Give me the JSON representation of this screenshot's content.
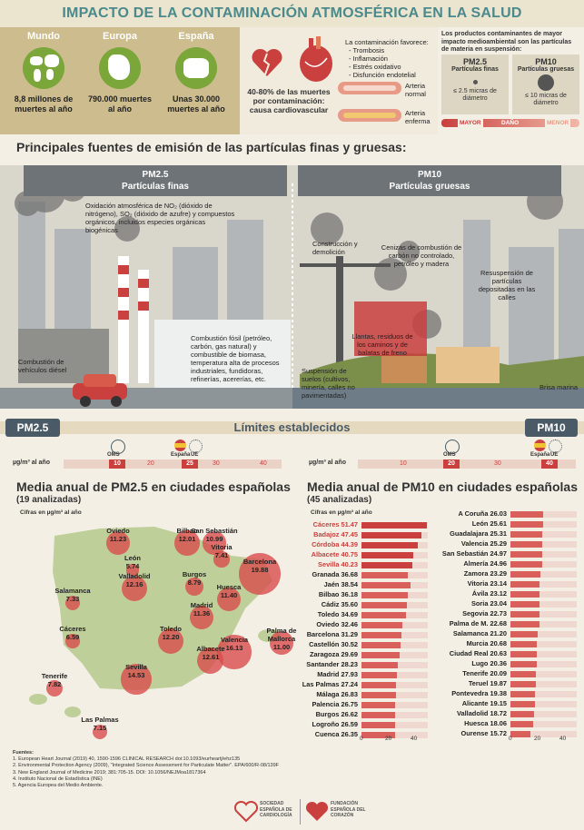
{
  "title": "IMPACTO DE LA CONTAMINACIÓN ATMOSFÉRICA EN LA SALUD",
  "regions": [
    {
      "name": "Mundo",
      "value": "8,8 millones de muertes al año"
    },
    {
      "name": "Europa",
      "value": "790.000 muertes al año"
    },
    {
      "name": "España",
      "value": "Unas 30.000 muertes al año"
    }
  ],
  "health": {
    "percent": "40-80% de las muertes por contaminación: causa cardiovascular",
    "favorece_title": "La contaminación favorece:",
    "favorece": [
      "- Trombosis",
      "- Inflamación",
      "- Estrés oxidativo",
      "- Disfunción endotelial"
    ],
    "arteria_normal": "Arteria normal",
    "arteria_enferma": "Arteria enferma"
  },
  "pm_compare": {
    "title": "Los productos contaminantes de mayor impacto medioambiental son las partículas de materia en suspensión:",
    "pm25_label": "PM2.5",
    "pm25_sub": "Partículas finas",
    "pm25_size": "≤ 2.5 micras de diámetro",
    "pm10_label": "PM10",
    "pm10_sub": "Partículas gruesas",
    "pm10_size": "≤ 10 micras de diámetro",
    "mayor": "MAYOR",
    "dano": "DAÑO",
    "menor": "MENOR"
  },
  "sources_title": "Principales fuentes de emisión de las partículas finas y gruesas:",
  "pm25_header": {
    "code": "PM2.5",
    "label": "Partículas finas"
  },
  "pm10_header": {
    "code": "PM10",
    "label": "Partículas gruesas"
  },
  "fine_sources": {
    "oxidacion": "Oxidación atmosférica de NO₂ (dióxido de nitrógeno), SO₂ (dióxido de azufre) y compuestos orgánicos, incluidos especies orgánicas biogénicas",
    "vehiculos": "Combustión de vehículos diésel",
    "fosil": "Combustión fósil (petróleo, carbón, gas natural) y combustible de biomasa, temperatura alta de procesos industriales, fundidoras, refinerías, acererías, etc."
  },
  "coarse_sources": {
    "construccion": "Construcción y demolición",
    "cenizas": "Cenizas de combustión de carbón no controlado, petróleo y madera",
    "resuspension": "Resuspensión de partículas depositadas en las calles",
    "llantas": "Llantas, residuos de los caminos y de balatas de freno",
    "suelos": "Suspensión de suelos (cultivos, minería, calles no pavimentadas)",
    "brisa": "Brisa marina"
  },
  "limits": {
    "title": "Límites establecidos",
    "pm25": "PM2.5",
    "pm10": "PM10",
    "unit": "µg/m³ al año",
    "oms": "OMS",
    "espana": "España",
    "ue": "UE",
    "pm25_ticks": [
      "10",
      "20",
      "25",
      "30",
      "40"
    ],
    "pm10_ticks": [
      "10",
      "20",
      "30",
      "40"
    ],
    "pm10_ticks_hi": [
      "20",
      "40"
    ]
  },
  "pm25_map": {
    "title": "Media anual de PM2.5 en ciudades españolas",
    "subtitle": "(19 analizadas)",
    "unit": "Cifras en µg/m³ al año",
    "cities": [
      {
        "name": "Oviedo",
        "value": "11.23"
      },
      {
        "name": "Bilbao",
        "value": "12.01"
      },
      {
        "name": "San Sebastián",
        "value": "10.99"
      },
      {
        "name": "Vitoria",
        "value": "7.41"
      },
      {
        "name": "León",
        "value": "5.74"
      },
      {
        "name": "Valladolid",
        "value": "12.16"
      },
      {
        "name": "Burgos",
        "value": "8.79"
      },
      {
        "name": "Barcelona",
        "value": "19.88"
      },
      {
        "name": "Salamanca",
        "value": "7.33"
      },
      {
        "name": "Huesca",
        "value": "11.40"
      },
      {
        "name": "Madrid",
        "value": "11.36"
      },
      {
        "name": "Cáceres",
        "value": "6.59"
      },
      {
        "name": "Toledo",
        "value": "12.20"
      },
      {
        "name": "Palma de Mallorca",
        "value": "11.00"
      },
      {
        "name": "Valencia",
        "value": "16.13"
      },
      {
        "name": "Albacete",
        "value": "12.61"
      },
      {
        "name": "Sevilla",
        "value": "14.53"
      },
      {
        "name": "Tenerife",
        "value": "7.82"
      },
      {
        "name": "Las Palmas",
        "value": "7.15"
      }
    ]
  },
  "pm10_chart": {
    "title": "Media anual de PM10 en ciudades españolas",
    "subtitle": "(45 analizadas)",
    "unit": "Cifras en µg/m³ al año",
    "axis": [
      "0",
      "20",
      "40"
    ],
    "left": [
      {
        "name": "Cáceres",
        "value": 51.47,
        "hl": true
      },
      {
        "name": "Badajoz",
        "value": 47.45,
        "hl": true
      },
      {
        "name": "Córdoba",
        "value": 44.39,
        "hl": true
      },
      {
        "name": "Albacete",
        "value": 40.75,
        "hl": true
      },
      {
        "name": "Sevilla",
        "value": 40.23,
        "hl": true
      },
      {
        "name": "Granada",
        "value": 36.68
      },
      {
        "name": "Jaén",
        "value": 38.54
      },
      {
        "name": "Bilbao",
        "value": 36.18
      },
      {
        "name": "Cádiz",
        "value": 35.6
      },
      {
        "name": "Toledo",
        "value": 34.69
      },
      {
        "name": "Oviedo",
        "value": 32.46
      },
      {
        "name": "Barcelona",
        "value": 31.29
      },
      {
        "name": "Castellón",
        "value": 30.52
      },
      {
        "name": "Zaragoza",
        "value": 29.69
      },
      {
        "name": "Santander",
        "value": 28.23
      },
      {
        "name": "Madrid",
        "value": 27.93
      },
      {
        "name": "Las Palmas",
        "value": 27.24
      },
      {
        "name": "Málaga",
        "value": 26.83
      },
      {
        "name": "Palencia",
        "value": 26.75
      },
      {
        "name": "Burgos",
        "value": 26.62
      },
      {
        "name": "Logroño",
        "value": 26.59
      },
      {
        "name": "Cuenca",
        "value": 26.35
      }
    ],
    "right": [
      {
        "name": "A Coruña",
        "value": 26.03
      },
      {
        "name": "León",
        "value": 25.61
      },
      {
        "name": "Guadalajara",
        "value": 25.31
      },
      {
        "name": "Valencia",
        "value": 25.29
      },
      {
        "name": "San Sebastián",
        "value": 24.97
      },
      {
        "name": "Almería",
        "value": 24.96
      },
      {
        "name": "Zamora",
        "value": 23.29
      },
      {
        "name": "Vitoria",
        "value": 23.14
      },
      {
        "name": "Ávila",
        "value": 23.12
      },
      {
        "name": "Soria",
        "value": 23.04
      },
      {
        "name": "Segovia",
        "value": 22.73
      },
      {
        "name": "Palma de M.",
        "value": 22.68
      },
      {
        "name": "Salamanca",
        "value": 21.2
      },
      {
        "name": "Murcia",
        "value": 20.68
      },
      {
        "name": "Ciudad Real",
        "value": 20.63
      },
      {
        "name": "Lugo",
        "value": 20.36
      },
      {
        "name": "Tenerife",
        "value": 20.09
      },
      {
        "name": "Teruel",
        "value": 19.87
      },
      {
        "name": "Pontevedra",
        "value": 19.38
      },
      {
        "name": "Alicante",
        "value": 19.15
      },
      {
        "name": "Valladolid",
        "value": 18.72
      },
      {
        "name": "Huesca",
        "value": 18.06
      },
      {
        "name": "Ourense",
        "value": 15.72
      }
    ]
  },
  "sources": {
    "title": "Fuentes:",
    "items": [
      "1. European Heart Journal (2019) 40, 1590-1596 CLINICAL RESEARCH doi:10.1093/eurheartj/ehz135",
      "2. Environmental Protection Agency (2009), \"Integrated Science Assessment for Particulate Matter\". EPA/600/R-08/139F",
      "3. New England Journal of Medicine 2019; 381:705-15. DOI: 10.1056/NEJMoa1817364",
      "4. Instituto Nacional de Estadística (INE)",
      "5. Agencia Europea del Medio Ambiente."
    ]
  },
  "logos": {
    "sec": "SOCIEDAD ESPAÑOLA DE CARDIOLOGÍA",
    "feec": "FUNDACIÓN ESPAÑOLA DEL CORAZÓN"
  },
  "colors": {
    "accent": "#4a8a8c",
    "red": "#c9403e",
    "green": "#7aa63a",
    "sand": "#ccbc8e"
  }
}
